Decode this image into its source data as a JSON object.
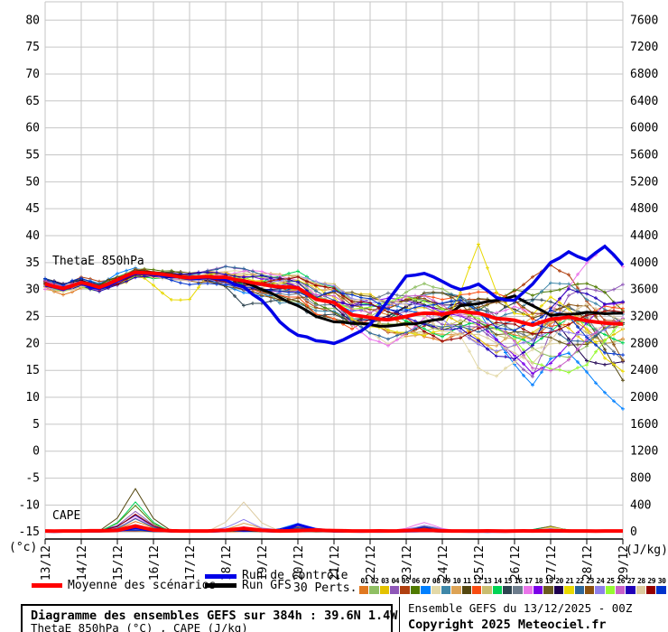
{
  "chart_data": {
    "type": "line",
    "title": "Diagramme des ensembles GEFS sur 384h : 39.6N 1.4W",
    "subtitle": "ThetaE 850hPa (°C) , CAPE (J/kg)",
    "x_dates": [
      "13/12",
      "14/12",
      "15/12",
      "16/12",
      "17/12",
      "18/12",
      "19/12",
      "20/12",
      "21/12",
      "22/12",
      "23/12",
      "24/12",
      "25/12",
      "26/12",
      "27/12",
      "28/12",
      "29/12"
    ],
    "hours_total": 384,
    "step_hours": 12,
    "y_left": {
      "unit": "(°c)",
      "min": -15,
      "max": 80,
      "step": 5
    },
    "y_right": {
      "unit": "(J/kg)",
      "min": 0,
      "max": 7600,
      "step": 400
    },
    "labels": {
      "thetae": "ThetaE 850hPa",
      "cape": "CAPE"
    },
    "grid_color": "#c6c6c6",
    "series": {
      "mean": {
        "name": "Moyenne des scénarios",
        "color": "#ff0000",
        "thetae": [
          31.0,
          30.2,
          31.3,
          30.4,
          31.8,
          33.2,
          33.0,
          32.6,
          32.2,
          32.4,
          32.3,
          31.6,
          31.0,
          30.5,
          30.3,
          28.2,
          27.6,
          25.3,
          24.8,
          24.4,
          25.0,
          25.6,
          25.4,
          26.0,
          25.6,
          24.6,
          24.3,
          23.4,
          24.5,
          24.9,
          24.2,
          23.8,
          23.6
        ],
        "cape": [
          15,
          15,
          15,
          18,
          25,
          90,
          30,
          18,
          15,
          15,
          25,
          55,
          25,
          15,
          20,
          30,
          20,
          15,
          15,
          15,
          22,
          28,
          18,
          15,
          15,
          15,
          15,
          15,
          18,
          15,
          15,
          15,
          15
        ]
      },
      "control": {
        "name": "Run de contrôle",
        "color": "#0000e8",
        "thetae": [
          30.8,
          30.0,
          31.2,
          30.2,
          31.6,
          33.0,
          32.8,
          32.4,
          32.0,
          32.3,
          31.8,
          30.5,
          28.0,
          24.0,
          21.5,
          20.5,
          20.0,
          21.5,
          23.5,
          28.0,
          32.5,
          33.0,
          31.5,
          30.0,
          31.0,
          28.5,
          28.0,
          31.0,
          35.0,
          37.0,
          35.5,
          38.0,
          34.5
        ],
        "cape": [
          10,
          10,
          12,
          14,
          20,
          60,
          22,
          14,
          10,
          10,
          20,
          60,
          18,
          10,
          110,
          40,
          14,
          10,
          10,
          10,
          14,
          18,
          12,
          10,
          10,
          10,
          10,
          10,
          12,
          10,
          10,
          10,
          10
        ]
      },
      "gfs": {
        "name": "Run GFS",
        "color": "#000000",
        "thetae": [
          31.0,
          30.3,
          31.4,
          30.5,
          31.9,
          33.3,
          33.1,
          32.7,
          32.0,
          32.2,
          32.4,
          31.4,
          30.0,
          28.5,
          27.0,
          25.0,
          24.0,
          23.7,
          23.5,
          23.2,
          23.6,
          24.0,
          24.5,
          27.0,
          27.4,
          28.0,
          28.8,
          27.0,
          25.2,
          25.4,
          25.8,
          25.5,
          25.6
        ],
        "cape": [
          10,
          10,
          12,
          14,
          22,
          70,
          24,
          14,
          10,
          10,
          18,
          40,
          16,
          10,
          14,
          20,
          12,
          10,
          10,
          10,
          12,
          14,
          10,
          10,
          10,
          10,
          10,
          10,
          10,
          10,
          10,
          10,
          10
        ]
      },
      "spread": [
        0.9,
        0.9,
        0.9,
        0.9,
        1.0,
        1.1,
        1.2,
        1.2,
        1.3,
        1.4,
        1.8,
        2.3,
        2.6,
        3.0,
        3.3,
        3.8,
        4.2,
        4.5,
        4.6,
        4.8,
        4.8,
        5.0,
        5.5,
        6.2,
        6.8,
        7.5,
        8.5,
        9.5,
        9.5,
        10.0,
        10.5,
        10.5,
        11.0
      ],
      "member_offsets": {
        "3": {
          "28": 4,
          "29": 6,
          "30": 7,
          "31": 6,
          "32": 5
        },
        "6": {
          "24": -3,
          "25": -6,
          "26": -9,
          "27": -12,
          "28": -9,
          "29": -7,
          "30": -5,
          "31": -4,
          "32": -6
        },
        "7": {
          "24": -5,
          "25": -8,
          "26": -9,
          "27": -8,
          "28": -7,
          "29": -6,
          "30": -4,
          "31": -5,
          "32": -6
        },
        "14": {
          "10": -2,
          "11": -5,
          "12": -3
        },
        "16": {
          "29": 3,
          "30": 4,
          "31": 5,
          "32": 4
        },
        "20": {
          "6": -3,
          "7": -5,
          "8": -4,
          "22": 3,
          "23": 8,
          "24": 14,
          "25": 4,
          "29": -5,
          "30": -7,
          "31": -8,
          "32": -9
        }
      },
      "cape_events": [
        {
          "i": 5,
          "peaks": {
            "10": 640,
            "13": 430,
            "5": 380,
            "3": 300,
            "28": 260,
            "26": 240,
            "16": 200,
            "21": 180,
            "0": 150
          }
        },
        {
          "i": 11,
          "peaks": {
            "27": 440,
            "23": 170,
            "9": 120
          }
        },
        {
          "i": 14,
          "peaks": {
            "6": 120,
            "26": 100
          }
        },
        {
          "i": 21,
          "peaks": {
            "16": 130,
            "23": 90
          }
        },
        {
          "i": 28,
          "peaks": {
            "13": 70,
            "5": 60
          }
        }
      ]
    },
    "members": [
      {
        "id": "01",
        "color": "#e07820"
      },
      {
        "id": "02",
        "color": "#8fbf63"
      },
      {
        "id": "03",
        "color": "#e3c200"
      },
      {
        "id": "04",
        "color": "#8f58b8"
      },
      {
        "id": "05",
        "color": "#b04010"
      },
      {
        "id": "06",
        "color": "#4f7a00"
      },
      {
        "id": "07",
        "color": "#0080ff"
      },
      {
        "id": "08",
        "color": "#e3d9a8"
      },
      {
        "id": "09",
        "color": "#3f87a8"
      },
      {
        "id": "10",
        "color": "#dda355"
      },
      {
        "id": "11",
        "color": "#54470f"
      },
      {
        "id": "12",
        "color": "#f84c10"
      },
      {
        "id": "13",
        "color": "#c9bd70"
      },
      {
        "id": "14",
        "color": "#00d455"
      },
      {
        "id": "15",
        "color": "#2e4450"
      },
      {
        "id": "16",
        "color": "#6c7c8c"
      },
      {
        "id": "17",
        "color": "#ea75ea"
      },
      {
        "id": "18",
        "color": "#7a00e8"
      },
      {
        "id": "19",
        "color": "#6b5c20"
      },
      {
        "id": "20",
        "color": "#1e0050"
      },
      {
        "id": "21",
        "color": "#e8d800"
      },
      {
        "id": "22",
        "color": "#2e6699"
      },
      {
        "id": "23",
        "color": "#8c5210"
      },
      {
        "id": "24",
        "color": "#8e7fea"
      },
      {
        "id": "25",
        "color": "#96fa32"
      },
      {
        "id": "26",
        "color": "#c861c8"
      },
      {
        "id": "27",
        "color": "#2100b8"
      },
      {
        "id": "28",
        "color": "#dcca9e"
      },
      {
        "id": "29",
        "color": "#960000"
      },
      {
        "id": "30",
        "color": "#0033cc"
      }
    ]
  },
  "legend": {
    "mean_label": "Moyenne des scénarios",
    "control_label": "Run de contrôle",
    "gfs_label": "Run GFS",
    "perts_label": "30 Perts.",
    "mean_color": "#ff0000",
    "control_color": "#0000e8",
    "gfs_color": "#000000"
  },
  "footer": {
    "title": "Diagramme des ensembles GEFS sur 384h : 39.6N 1.4W",
    "subtitle": "ThetaE 850hPa (°C) , CAPE (J/kg)",
    "run_info": "Ensemble GEFS du 13/12/2025 - 00Z",
    "copyright": "Copyright 2025 Meteociel.fr"
  }
}
